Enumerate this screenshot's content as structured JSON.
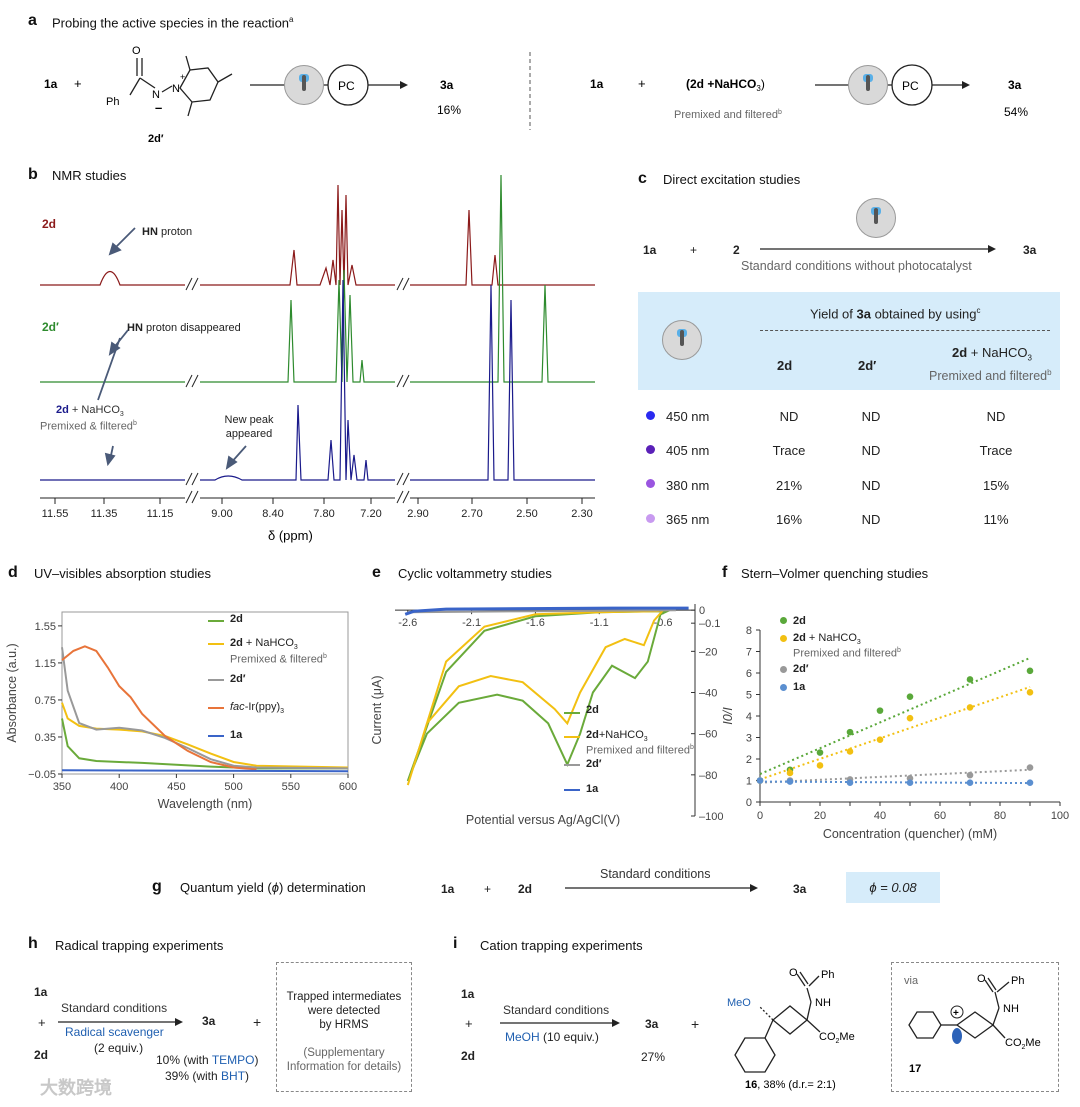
{
  "a": {
    "label": "a",
    "title": "Probing the active species in the reaction",
    "title_sup": "a",
    "left": {
      "r1": "1a",
      "plus": "+",
      "ph": "Ph",
      "o": "O",
      "n": "N",
      "nplus": "N",
      "plus_sign": "+",
      "minus": "–",
      "compound": "2d′",
      "pc": "PC",
      "product": "3a",
      "yield": "16%"
    },
    "right": {
      "r1": "1a",
      "plus": "+",
      "mix": "(2d +NaHCO",
      "mix_sub": "3",
      "mix_end": ")",
      "note": "Premixed and filtered",
      "note_sup": "b",
      "pc": "PC",
      "product": "3a",
      "yield": "54%"
    }
  },
  "b": {
    "label": "b",
    "title": "NMR studies",
    "traces": [
      {
        "name": "2d",
        "color": "#8b1a1a",
        "annotation_b": "HN",
        "annotation": " proton"
      },
      {
        "name": "2d′",
        "color": "#2e8b2e",
        "annotation_b": "HN",
        "annotation": " proton disappeared"
      },
      {
        "name": "2d",
        "suffix": " + NaHCO",
        "suffix_sub": "3",
        "note": "Premixed & filtered",
        "note_sup": "b",
        "color": "#1a1a8b",
        "annotation": "New peak appeared"
      }
    ],
    "ticks": [
      "11.55",
      "11.35",
      "11.15",
      "9.00",
      "8.40",
      "7.80",
      "7.20",
      "2.90",
      "2.70",
      "2.50",
      "2.30"
    ],
    "xlabel": "δ (ppm)"
  },
  "c": {
    "label": "c",
    "title": "Direct excitation studies",
    "r1": "1a",
    "plus": "+",
    "r2": "2",
    "product": "3a",
    "condition": "Standard conditions without photocatalyst",
    "header": "Yield of ",
    "header_b": "3a",
    "header_end": " obtained by using",
    "header_sup": "c",
    "cols": [
      "2d",
      "2d′",
      "2d"
    ],
    "col3_suffix": " + NaHCO",
    "col3_sub": "3",
    "col3_note": "Premixed and filtered",
    "col3_sup": "b",
    "rows": [
      {
        "wl": "450 nm",
        "color": "#2a2af0",
        "v": [
          "ND",
          "ND",
          "ND"
        ]
      },
      {
        "wl": "405 nm",
        "color": "#5a20b8",
        "v": [
          "Trace",
          "ND",
          "Trace"
        ]
      },
      {
        "wl": "380 nm",
        "color": "#9a55e0",
        "v": [
          "21%",
          "ND",
          "15%"
        ]
      },
      {
        "wl": "365 nm",
        "color": "#c89af0",
        "v": [
          "16%",
          "ND",
          "11%"
        ]
      }
    ]
  },
  "chart_data": [
    {
      "type": "line",
      "panel": "d",
      "title": "UV–visibles absorption studies",
      "xlabel": "Wavelength (nm)",
      "ylabel": "Absorbance (a.u.)",
      "xlim": [
        350,
        600
      ],
      "ylim": [
        -0.05,
        1.7
      ],
      "xticks": [
        "350",
        "400",
        "450",
        "500",
        "550",
        "600"
      ],
      "yticks": [
        "1.55",
        "1.15",
        "0.75",
        "0.35",
        "−0.05"
      ],
      "series": [
        {
          "name": "2d",
          "color": "#6aaa3a",
          "x": [
            350,
            355,
            365,
            380,
            400,
            420,
            450,
            480,
            500,
            520,
            600
          ],
          "y": [
            0.55,
            0.25,
            0.12,
            0.09,
            0.08,
            0.07,
            0.05,
            0.03,
            0.02,
            0.01,
            0.01
          ]
        },
        {
          "name": "2d + NaHCO3",
          "note": "Premixed & filtered",
          "color": "#f2c012",
          "x": [
            350,
            355,
            365,
            380,
            400,
            420,
            440,
            460,
            480,
            500,
            520,
            600
          ],
          "y": [
            0.72,
            0.55,
            0.47,
            0.44,
            0.43,
            0.41,
            0.36,
            0.27,
            0.17,
            0.08,
            0.04,
            0.02
          ]
        },
        {
          "name": "2d′",
          "color": "#999999",
          "x": [
            350,
            355,
            365,
            380,
            400,
            420,
            440,
            460,
            480,
            500,
            520,
            600
          ],
          "y": [
            1.32,
            0.85,
            0.5,
            0.43,
            0.45,
            0.42,
            0.34,
            0.23,
            0.11,
            0.04,
            0.02,
            0.01
          ]
        },
        {
          "name": "fac-Ir(ppy)3",
          "color": "#e8743a",
          "x": [
            350,
            360,
            370,
            380,
            390,
            400,
            410,
            420,
            440,
            460,
            480,
            500,
            520
          ],
          "y": [
            1.18,
            1.28,
            1.33,
            1.28,
            1.1,
            0.9,
            0.78,
            0.6,
            0.36,
            0.2,
            0.08,
            0.02,
            0.0
          ]
        },
        {
          "name": "1a",
          "color": "#3a64c8",
          "x": [
            350,
            600
          ],
          "y": [
            -0.01,
            -0.02
          ]
        }
      ]
    },
    {
      "type": "line",
      "panel": "e",
      "title": "Cyclic voltammetry studies",
      "xlabel": "Potential versus Ag/AgCl(V)",
      "ylabel": "Current (μA)",
      "xlim": [
        -2.7,
        -0.4
      ],
      "ylim": [
        -100,
        3
      ],
      "xticks": [
        "-2.6",
        "-2.1",
        "-1.6",
        "-1.1",
        "-0.6"
      ],
      "yticks": [
        "0",
        "–0.1",
        "–20",
        "–40",
        "–60",
        "–80",
        "–100"
      ],
      "series": [
        {
          "name": "2d",
          "color": "#6aaa3a"
        },
        {
          "name": "2d+NaHCO3",
          "note": "Premixed and filtered",
          "color": "#f2c012"
        },
        {
          "name": "2d′",
          "color": "#999999"
        },
        {
          "name": "1a",
          "color": "#3a64c8"
        }
      ]
    },
    {
      "type": "scatter",
      "panel": "f",
      "title": "Stern–Volmer quenching studies",
      "xlabel": "Concentration (quencher) (mM)",
      "ylabel": "I0/I",
      "xlim": [
        0,
        100
      ],
      "ylim": [
        0,
        8
      ],
      "xticks": [
        "0",
        "10",
        "20",
        "30",
        "40",
        "50",
        "60",
        "70",
        "80",
        "90",
        "100"
      ],
      "yticks": [
        "0",
        "1",
        "2",
        "3",
        "4",
        "5",
        "6",
        "7",
        "8"
      ],
      "series": [
        {
          "name": "2d",
          "color": "#5aa83a",
          "x": [
            0,
            10,
            20,
            30,
            40,
            50,
            70,
            90
          ],
          "y": [
            1.0,
            1.5,
            2.3,
            3.25,
            4.25,
            4.9,
            5.7,
            6.1
          ],
          "fit": [
            1.3,
            6.7
          ]
        },
        {
          "name": "2d + NaHCO3",
          "note": "Premixed and filtered",
          "color": "#f2c012",
          "x": [
            0,
            10,
            20,
            30,
            40,
            50,
            70,
            90
          ],
          "y": [
            1.0,
            1.35,
            1.7,
            2.35,
            2.9,
            3.9,
            4.4,
            5.1
          ],
          "fit": [
            1.05,
            5.35
          ]
        },
        {
          "name": "2d′",
          "color": "#999999",
          "x": [
            0,
            10,
            30,
            50,
            70,
            90
          ],
          "y": [
            1.0,
            1.0,
            1.05,
            1.1,
            1.25,
            1.6
          ],
          "fit": [
            0.9,
            1.5
          ]
        },
        {
          "name": "1a",
          "color": "#5b8fd0",
          "x": [
            0,
            10,
            30,
            50,
            70,
            90
          ],
          "y": [
            1.0,
            0.95,
            0.9,
            0.9,
            0.9,
            0.9
          ],
          "fit": [
            0.95,
            0.88
          ]
        }
      ]
    }
  ],
  "g": {
    "label": "g",
    "title": "Quantum yield (",
    "phi": "ϕ",
    "title_end": ") determination",
    "r1": "1a",
    "plus": "+",
    "r2": "2d",
    "condition": "Standard conditions",
    "product": "3a",
    "result": "ϕ = 0.08"
  },
  "h": {
    "label": "h",
    "title": "Radical trapping experiments",
    "r1": "1a",
    "plus": "+",
    "r2": "2d",
    "cond1": "Standard conditions",
    "cond2": "Radical scavenger",
    "cond3": "(2 equiv.)",
    "product": "3a",
    "plus2": "+",
    "y1": "10% (with ",
    "y1b": "TEMPO",
    "y1e": ")",
    "y2": "39% (with ",
    "y2b": "BHT",
    "y2e": ")",
    "box1": "Trapped intermediates",
    "box2": "were detected",
    "box3": "by HRMS",
    "box4": "(Supplementary",
    "box5": "Information for details)"
  },
  "i": {
    "label": "i",
    "title": "Cation trapping experiments",
    "r1": "1a",
    "plus": "+",
    "r2": "2d",
    "cond1": "Standard conditions",
    "cond2": "MeOH",
    "cond3": " (10 equiv.)",
    "product": "3a",
    "yield": "27%",
    "plus2": "+",
    "meo": "MeO",
    "nh": "NH",
    "o": "O",
    "ph": "Ph",
    "co2me": "CO",
    "co2me_sub": "2",
    "co2me_end": "Me",
    "cmpd16": "16",
    "cmpd16_note": ", 38% (d.r.= 2:1)",
    "via": "via",
    "cmpd17": "17"
  },
  "watermark": "大数跨境"
}
